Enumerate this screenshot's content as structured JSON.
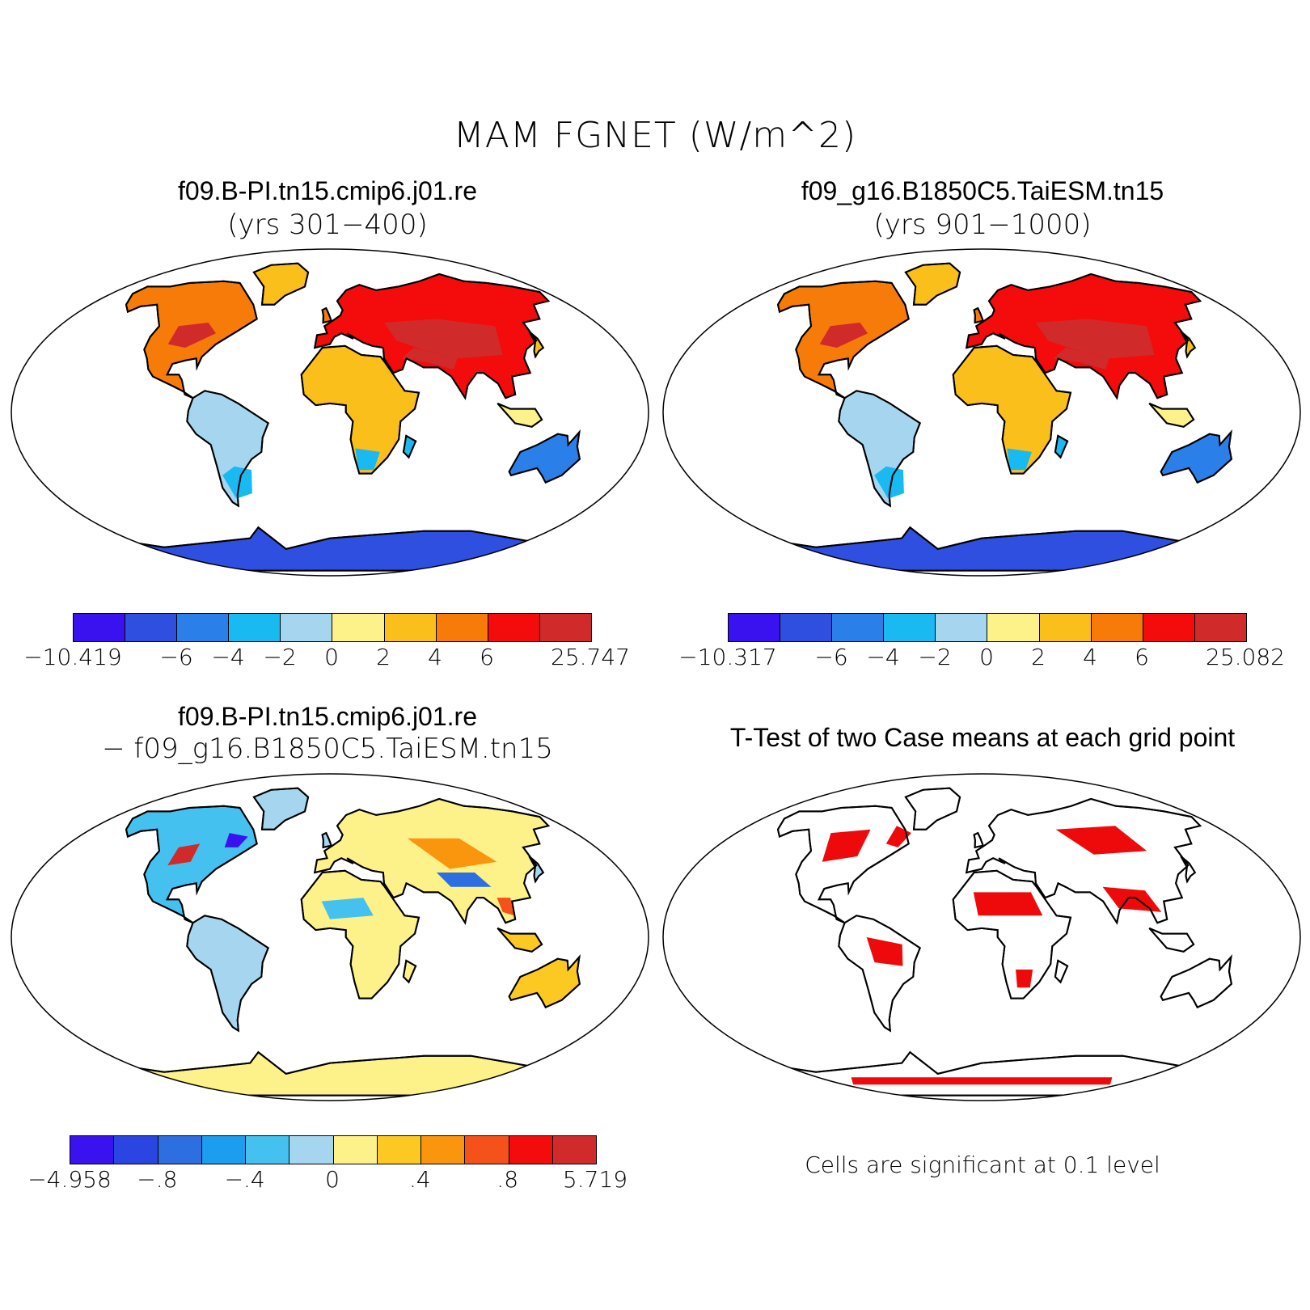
{
  "figure": {
    "title": "MAM FGNET (W/m^2)"
  },
  "panels": [
    {
      "id": "case1",
      "title": "f09.B-PI.tn15.cmip6.j01.re",
      "subtitle": "(yrs 301−400)",
      "colorbar": {
        "colors": [
          "#3a12f0",
          "#2f4fe0",
          "#2a7fe8",
          "#19b9f2",
          "#a6d6ef",
          "#fdf18a",
          "#fbbf1c",
          "#f77b08",
          "#f40b0b",
          "#d12a2a"
        ],
        "labels": [
          "−10.419",
          "−6",
          "−4",
          "−2",
          "0",
          "2",
          "4",
          "6",
          "25.747"
        ]
      }
    },
    {
      "id": "case2",
      "title": "f09_g16.B1850C5.TaiESM.tn15",
      "subtitle": "(yrs 901−1000)",
      "colorbar": {
        "colors": [
          "#3a12f0",
          "#2f4fe0",
          "#2a7fe8",
          "#19b9f2",
          "#a6d6ef",
          "#fdf18a",
          "#fbbf1c",
          "#f77b08",
          "#f40b0b",
          "#d12a2a"
        ],
        "labels": [
          "−10.317",
          "−6",
          "−4",
          "−2",
          "0",
          "2",
          "4",
          "6",
          "25.082"
        ]
      }
    },
    {
      "id": "diff",
      "title": "f09.B-PI.tn15.cmip6.j01.re",
      "subtitle": "− f09_g16.B1850C5.TaiESM.tn15",
      "colorbar": {
        "colors": [
          "#3a12f0",
          "#2a45e2",
          "#2d6fe0",
          "#1b9df0",
          "#45c1f0",
          "#a6d6ef",
          "#fdf18a",
          "#fcc923",
          "#f9960d",
          "#f5511a",
          "#f20c0c",
          "#d12a2a"
        ],
        "labels": [
          "−4.958",
          "−.8",
          "−.4",
          "0",
          ".4",
          ".8",
          "5.719"
        ]
      }
    },
    {
      "id": "ttest",
      "title": "T-Test of two Case means at each grid point",
      "note": "Cells are significant at 0.1 level"
    }
  ]
}
